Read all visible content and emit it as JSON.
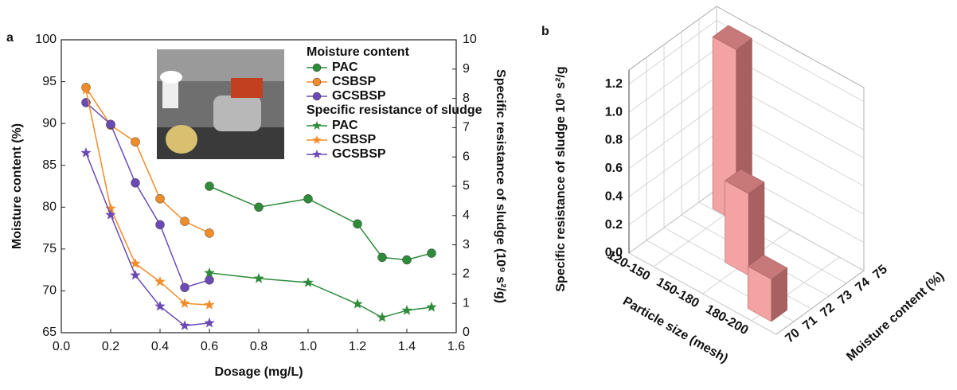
{
  "chart_data": [
    {
      "type": "line",
      "panel_label": "a",
      "xlabel": "Dosage (mg/L)",
      "ylabel": "Moisture content (%)",
      "y2label": "Specific resistance of sludge (10⁹ s²/g)",
      "xlim": [
        0,
        1.6
      ],
      "xticks": [
        {
          "value": 0,
          "label": "0.0"
        },
        0.2,
        0.4,
        0.6,
        0.8,
        {
          "value": 1,
          "label": "1.0"
        },
        1.2,
        1.4,
        1.6
      ],
      "ylim": [
        65,
        100
      ],
      "yticks": [
        65,
        70,
        75,
        80,
        85,
        90,
        95,
        100
      ],
      "y2lim": [
        0,
        10
      ],
      "y2ticks": [
        0,
        1,
        2,
        3,
        4,
        5,
        6,
        7,
        8,
        9,
        10
      ],
      "legend_titles": [
        "Moisture content",
        "Specific resistance of sludge"
      ],
      "series": [
        {
          "name": "PAC",
          "color": "#2e8b3a",
          "marker": "circle",
          "axis": "y",
          "x": [
            0.6,
            0.8,
            1.0,
            1.2,
            1.3,
            1.4,
            1.5
          ],
          "values": [
            82.5,
            80.0,
            81.0,
            78.0,
            74.0,
            73.7,
            74.5
          ]
        },
        {
          "name": "CSBSP",
          "color": "#f28c28",
          "marker": "circle",
          "axis": "y",
          "x": [
            0.1,
            0.2,
            0.3,
            0.4,
            0.5,
            0.6
          ],
          "values": [
            94.3,
            89.8,
            87.8,
            81.0,
            78.3,
            76.9
          ]
        },
        {
          "name": "GCSBSP",
          "color": "#6a4bb5",
          "marker": "circle",
          "axis": "y",
          "x": [
            0.1,
            0.2,
            0.3,
            0.4,
            0.5,
            0.6
          ],
          "values": [
            92.5,
            89.9,
            82.9,
            77.9,
            70.4,
            71.3
          ]
        },
        {
          "name": "PAC",
          "color": "#2e8b3a",
          "marker": "star",
          "axis": "y2",
          "x": [
            0.6,
            0.8,
            1.0,
            1.2,
            1.3,
            1.4,
            1.5
          ],
          "values": [
            2.04,
            1.85,
            1.71,
            0.98,
            0.52,
            0.76,
            0.87
          ]
        },
        {
          "name": "CSBSP",
          "color": "#f28c28",
          "marker": "star",
          "axis": "y2",
          "x": [
            0.1,
            0.2,
            0.3,
            0.4,
            0.5,
            0.6
          ],
          "values": [
            8.29,
            4.24,
            2.36,
            1.74,
            1.0,
            0.95
          ]
        },
        {
          "name": "GCSBSP",
          "color": "#6a4bb5",
          "marker": "star",
          "axis": "y2",
          "x": [
            0.1,
            0.2,
            0.3,
            0.4,
            0.5,
            0.6
          ],
          "values": [
            6.14,
            4.02,
            1.96,
            0.9,
            0.24,
            0.33
          ]
        }
      ]
    },
    {
      "type": "bar3d",
      "panel_label": "b",
      "xlabel": "Particle size (mesh)",
      "ylabel": "Moisture content (%)",
      "zlabel": "Specific resistance of sludge  10⁹ s²/g",
      "categories": [
        "120-150",
        "150-180",
        "180-200"
      ],
      "ylim": [
        70,
        75
      ],
      "yticks": [
        70,
        71,
        72,
        73,
        74,
        75
      ],
      "zlim": [
        0,
        1.3
      ],
      "zticks": [
        {
          "value": 0,
          "label": "0.0"
        },
        0.2,
        0.4,
        0.6,
        0.8,
        {
          "value": 1,
          "label": "1.0"
        },
        1.2
      ],
      "color": "#f4a3a3",
      "moisture": [
        74.5,
        72.4,
        70.9
      ],
      "values": [
        1.22,
        0.58,
        0.3
      ]
    }
  ]
}
